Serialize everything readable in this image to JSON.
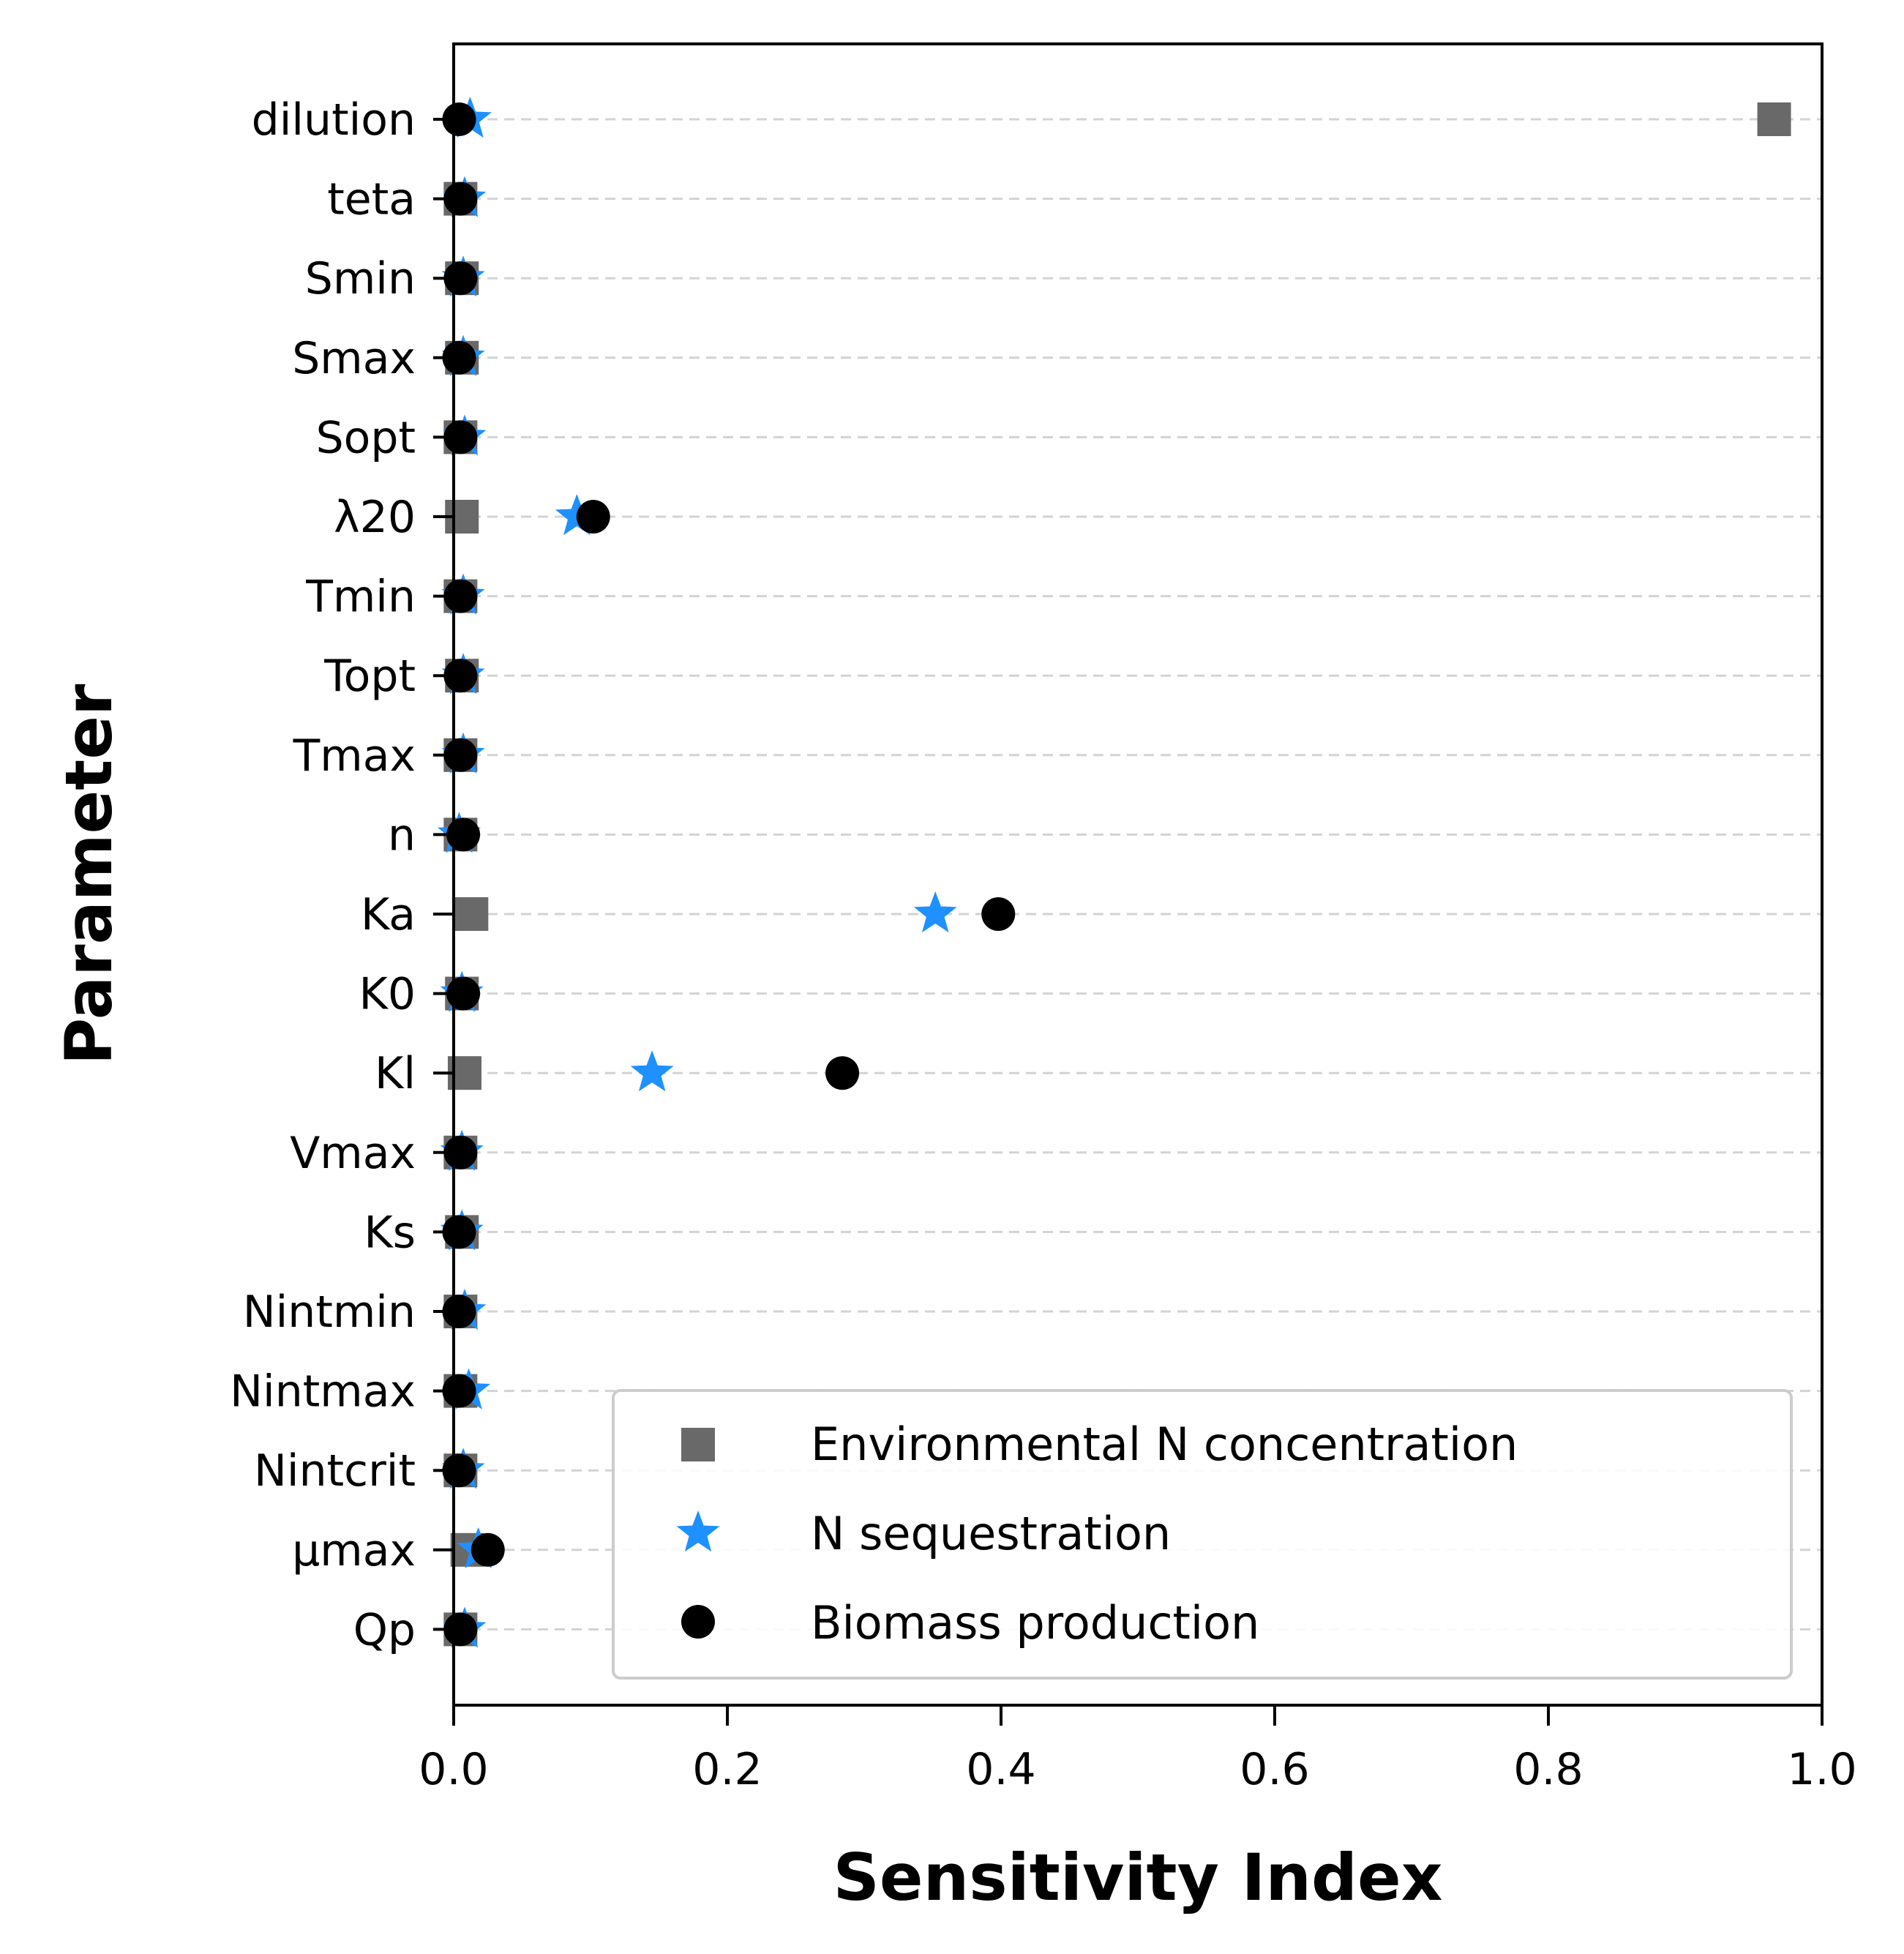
{
  "chart_data": {
    "type": "scatter",
    "orientation": "horizontal",
    "title": "",
    "xlabel": "Sensitivity Index",
    "ylabel": "Parameter",
    "xlim": [
      0.0,
      1.0
    ],
    "xticks": [
      "0.0",
      "0.2",
      "0.4",
      "0.6",
      "0.8",
      "1.0"
    ],
    "categories": [
      "dilution",
      "teta",
      "Smin",
      "Smax",
      "Sopt",
      "λ20",
      "Tmin",
      "Topt",
      "Tmax",
      "n",
      "Ka",
      "K0",
      "Kl",
      "Vmax",
      "Ks",
      "Nintmin",
      "Nintmax",
      "Nintcrit",
      "μmax",
      "Qp"
    ],
    "grid": "y-dashed",
    "legend_position": "bottom-right",
    "series": [
      {
        "name": "Environmental N concentration",
        "marker": "square",
        "color": "#696969",
        "values": [
          0.965,
          0.005,
          0.006,
          0.006,
          0.005,
          0.006,
          0.005,
          0.006,
          0.005,
          0.005,
          0.013,
          0.006,
          0.008,
          0.005,
          0.006,
          0.005,
          0.005,
          0.005,
          0.01,
          0.005
        ]
      },
      {
        "name": "N sequestration",
        "marker": "star",
        "color": "#1e90ff",
        "values": [
          0.012,
          0.008,
          0.007,
          0.007,
          0.008,
          0.09,
          0.007,
          0.007,
          0.007,
          0.004,
          0.352,
          0.006,
          0.145,
          0.006,
          0.006,
          0.008,
          0.011,
          0.007,
          0.018,
          0.008
        ]
      },
      {
        "name": "Biomass production",
        "marker": "circle",
        "color": "#000000",
        "values": [
          0.004,
          0.005,
          0.005,
          0.004,
          0.005,
          0.102,
          0.005,
          0.005,
          0.005,
          0.007,
          0.398,
          0.007,
          0.284,
          0.005,
          0.004,
          0.004,
          0.004,
          0.004,
          0.025,
          0.005
        ]
      }
    ]
  }
}
